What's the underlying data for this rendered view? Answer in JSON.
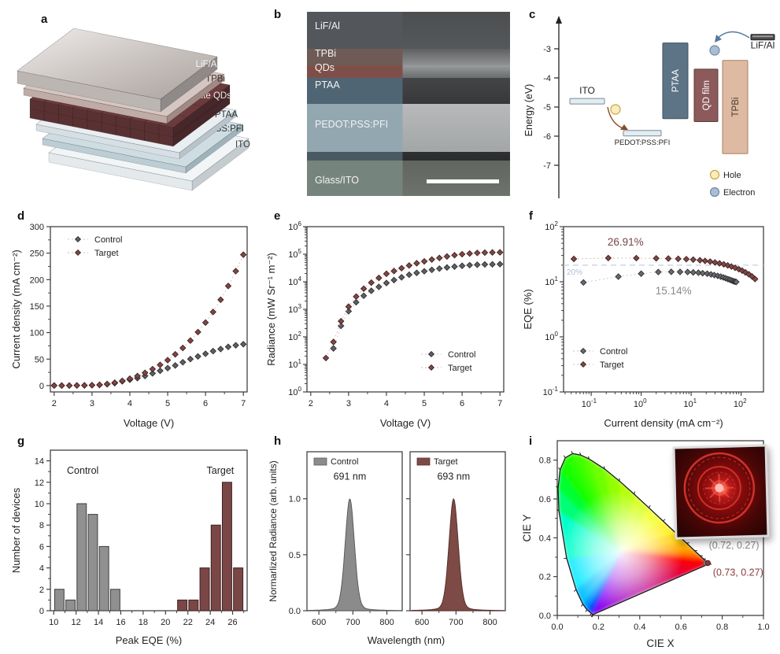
{
  "panels": {
    "a": {
      "label": "a",
      "layers": [
        {
          "name": "LiF/Al",
          "t": 16,
          "gap": 6,
          "top": "#d8d4d2",
          "side": "#8f8a88",
          "front": "#bcb6b3",
          "text": "#f7f7f7"
        },
        {
          "name": "TPBi",
          "t": 9,
          "gap": 5,
          "top": "#d6c6c2",
          "side": "#a08a85",
          "front": "#c0aca7",
          "text": "#3d3430"
        },
        {
          "name": "Perovskite QDs",
          "t": 24,
          "gap": 8,
          "top": "#6b3a3c",
          "side": "#46272a",
          "front": "#5a3133",
          "text": "#f3e8e6",
          "grid": true
        },
        {
          "name": "PTAA",
          "t": 8,
          "gap": 10,
          "top": "#e8eef1",
          "side": "#b9c4ca",
          "front": "#d6dfe3",
          "text": "#2c3438"
        },
        {
          "name": "PEDOT:PSS:PFI",
          "t": 8,
          "gap": 10,
          "top": "#cfdde3",
          "side": "#9fb3bc",
          "front": "#bccdd4",
          "text": "#253036"
        },
        {
          "name": "ITO",
          "t": 12,
          "gap": 0,
          "top": "#f1f5f6",
          "side": "#c4ccd0",
          "front": "#e4eaec",
          "text": "#333a3d"
        }
      ]
    },
    "b": {
      "label": "b",
      "layers": [
        {
          "name": "LiF/Al",
          "h": 20,
          "left": "#53565a",
          "right_top": "#4c4e50",
          "right_bot": "#55585a",
          "label_dy": 0.38
        },
        {
          "name": "TPBi",
          "h": 9,
          "left": "#6e5b55",
          "right_top": "#5e6062",
          "right_bot": "#8f9294",
          "label_dy": 0.3
        },
        {
          "name": "QDs",
          "h": 7,
          "left": "#7e4f49",
          "right_top": "#999c9d",
          "right_bot": "#6a6c6e",
          "label_dy": 0.18
        },
        {
          "name": "PTAA",
          "h": 14,
          "left": "#4f6573",
          "right_top": "#434547",
          "right_bot": "#36383a",
          "label_dy": 0.28
        },
        {
          "name": "PEDOT:PSS:PFI",
          "h": 26,
          "left": "#93a7b0",
          "right_top": "#b7b9ba",
          "right_bot": "#a3a6a7",
          "label_dy": 0.42
        },
        {
          "name": "",
          "h": 5,
          "left": "#4a5a62",
          "right_top": "#2e3032",
          "right_bot": "#2a2c2e",
          "label_dy": 0
        },
        {
          "name": "Glass/ITO",
          "h": 19,
          "left": "#76847e",
          "right_top": "#60665f",
          "right_bot": "#6d736c",
          "label_dy": 0.55
        }
      ],
      "has_scale_bar": true
    },
    "c": {
      "label": "c",
      "ylabel": "Energy (eV)",
      "yticks": [
        -3,
        -4,
        -5,
        -6,
        -7
      ],
      "electrodes": [
        {
          "name": "ITO",
          "level": -4.8,
          "x": 64,
          "w": 44,
          "label_pos": "above"
        },
        {
          "name": "PEDOT:PSS:PFI",
          "level": -5.9,
          "x": 132,
          "w": 48,
          "label_pos": "below"
        },
        {
          "name": "LiF/Al",
          "level": -2.6,
          "x": 294,
          "w": 30,
          "label_pos": "below",
          "metallic": true
        }
      ],
      "bars": [
        {
          "name": "PTAA",
          "top": -2.8,
          "bottom": -5.4,
          "x": 182,
          "w": 32,
          "color": "#5d7486",
          "stroke": "#3f5260",
          "text": "#ffffff"
        },
        {
          "name": "QD film",
          "top": -3.7,
          "bottom": -5.5,
          "x": 222,
          "w": 30,
          "color": "#8c5a5a",
          "stroke": "#5e3a3a",
          "text": "#ffffff"
        },
        {
          "name": "TPBi",
          "top": -3.4,
          "bottom": -6.6,
          "x": 258,
          "w": 32,
          "color": "#ddbaa1",
          "stroke": "#a98064",
          "text": "#4a3a30"
        }
      ],
      "legend": [
        {
          "label": "Hole",
          "fill": "#f8edc0",
          "stroke": "#caa53a"
        },
        {
          "label": "Electron",
          "fill": "#a9bdd3",
          "stroke": "#6e88a6"
        }
      ]
    },
    "d": {
      "label": "d"
    },
    "e": {
      "label": "e"
    },
    "f": {
      "label": "f"
    },
    "g": {
      "label": "g"
    },
    "h": {
      "label": "h"
    },
    "i": {
      "label": "i"
    }
  },
  "chart_data": [
    {
      "id": "d",
      "type": "scatter",
      "xlabel": "Voltage (V)",
      "ylabel": "Current density (mA cm⁻²)",
      "xlim": [
        1.9,
        7.1
      ],
      "ylim": [
        -12,
        300
      ],
      "xticks": [
        2,
        3,
        4,
        5,
        6,
        7
      ],
      "yticks": [
        0,
        50,
        100,
        150,
        200,
        250,
        300
      ],
      "legend_position": "top-left",
      "series": [
        {
          "name": "Control",
          "fill": "#5e5e63",
          "edge": "#2f2f33",
          "line": "#c4c4c4",
          "x": [
            2.0,
            2.2,
            2.4,
            2.6,
            2.8,
            3.0,
            3.2,
            3.4,
            3.6,
            3.8,
            4.0,
            4.2,
            4.4,
            4.6,
            4.8,
            5.0,
            5.2,
            5.4,
            5.6,
            5.8,
            6.0,
            6.2,
            6.4,
            6.6,
            6.8,
            7.0
          ],
          "y": [
            0,
            0,
            0,
            0.2,
            0.3,
            0.6,
            1.2,
            2.5,
            4.5,
            8,
            11,
            14,
            18,
            23,
            28,
            33,
            38,
            44,
            50,
            55,
            60,
            65,
            69,
            73,
            76,
            78
          ]
        },
        {
          "name": "Target",
          "fill": "#7d4848",
          "edge": "#43201f",
          "line": "#d8b0b0",
          "x": [
            2.0,
            2.2,
            2.4,
            2.6,
            2.8,
            3.0,
            3.2,
            3.4,
            3.6,
            3.8,
            4.0,
            4.2,
            4.4,
            4.6,
            4.8,
            5.0,
            5.2,
            5.4,
            5.6,
            5.8,
            6.0,
            6.2,
            6.4,
            6.6,
            6.8,
            7.0
          ],
          "y": [
            0,
            0,
            0,
            0.2,
            0.4,
            0.8,
            1.6,
            3,
            5.5,
            9,
            13,
            18,
            24,
            31,
            39,
            48,
            59,
            71,
            85,
            101,
            119,
            139,
            162,
            188,
            216,
            247
          ]
        }
      ]
    },
    {
      "id": "e",
      "type": "scatter-logy",
      "xlabel": "Voltage (V)",
      "ylabel": "Radiance (mW Sr⁻¹ m⁻²)",
      "xlim": [
        1.9,
        7.1
      ],
      "ylog_exp": [
        0,
        6
      ],
      "xticks": [
        2,
        3,
        4,
        5,
        6,
        7
      ],
      "legend_position": "bottom-right",
      "series": [
        {
          "name": "Control",
          "fill": "#5e5e63",
          "edge": "#2f2f33",
          "line": "#c4c4c4",
          "x": [
            2.6,
            2.8,
            3.0,
            3.2,
            3.4,
            3.6,
            3.8,
            4.0,
            4.2,
            4.4,
            4.6,
            4.8,
            5.0,
            5.2,
            5.4,
            5.6,
            5.8,
            6.0,
            6.2,
            6.4,
            6.6,
            6.8,
            7.0
          ],
          "y": [
            38,
            250,
            850,
            1800,
            3100,
            4700,
            6500,
            9000,
            11500,
            14500,
            18000,
            21000,
            24000,
            27000,
            30000,
            33000,
            35500,
            38000,
            40000,
            41500,
            42500,
            43000,
            43500
          ]
        },
        {
          "name": "Target",
          "fill": "#7d4848",
          "edge": "#43201f",
          "line": "#d8b0b0",
          "x": [
            2.4,
            2.6,
            2.8,
            3.0,
            3.2,
            3.4,
            3.6,
            3.8,
            4.0,
            4.2,
            4.4,
            4.6,
            4.8,
            5.0,
            5.2,
            5.4,
            5.6,
            5.8,
            6.0,
            6.2,
            6.4,
            6.6,
            6.8,
            7.0
          ],
          "y": [
            17,
            65,
            370,
            1250,
            2900,
            5600,
            9300,
            13800,
            19500,
            24500,
            31000,
            39000,
            47000,
            55000,
            64000,
            73000,
            83000,
            92000,
            100000,
            106000,
            111000,
            114000,
            116000,
            117000
          ]
        }
      ]
    },
    {
      "id": "f",
      "type": "scatter-loglog",
      "xlabel": "Current density (mA cm⁻²)",
      "ylabel": "EQE (%)",
      "xlog_lim": [
        0.028,
        280
      ],
      "ylog_exp": [
        -1,
        2
      ],
      "legend_position": "bottom-left",
      "refline": {
        "value": 20,
        "label": "20%",
        "color": "#c9d4e6",
        "label_color": "#aebfd8"
      },
      "annotations": [
        {
          "text": "26.91%",
          "color": "#7a4444",
          "px": 0.31,
          "py": 0.115
        },
        {
          "text": "15.14%",
          "color": "#8a8a8a",
          "px": 0.55,
          "py": 0.41
        }
      ],
      "series": [
        {
          "name": "Control",
          "fill": "#6a6a6e",
          "edge": "#2f2f33",
          "line": "#c4c4c4",
          "x": [
            0.07,
            0.35,
            1,
            2.2,
            4,
            6,
            8.5,
            11,
            14,
            17,
            21,
            25,
            29,
            34,
            39,
            44,
            49,
            54,
            59,
            64,
            69,
            73,
            77,
            80
          ],
          "y": [
            9.7,
            12.4,
            14.0,
            15.0,
            15.14,
            15.1,
            15.0,
            14.8,
            14.6,
            14.3,
            14.0,
            13.6,
            13.2,
            12.8,
            12.4,
            12.0,
            11.6,
            11.2,
            10.9,
            10.6,
            10.3,
            10.1,
            10.0,
            9.9
          ]
        },
        {
          "name": "Target",
          "fill": "#7d4848",
          "edge": "#43201f",
          "line": "#d8b0b0",
          "x": [
            0.045,
            0.22,
            0.8,
            2,
            3.5,
            5.5,
            8,
            11,
            15,
            19,
            24,
            30,
            37,
            45,
            54,
            64,
            76,
            90,
            105,
            122,
            142,
            165,
            190
          ],
          "y": [
            26.0,
            26.91,
            26.8,
            26.6,
            26.4,
            26.1,
            25.7,
            25.2,
            24.6,
            23.9,
            23.2,
            22.4,
            21.6,
            20.7,
            19.8,
            18.9,
            17.9,
            16.9,
            15.9,
            14.8,
            13.7,
            12.5,
            11.2
          ]
        }
      ]
    },
    {
      "id": "g",
      "type": "bar",
      "xlabel": "Peak EQE (%)",
      "ylabel": "Number of devices",
      "xlim": [
        9.7,
        27.3
      ],
      "ylim": [
        0,
        15
      ],
      "xticks": [
        10,
        12,
        14,
        16,
        18,
        20,
        22,
        24,
        26
      ],
      "yticks": [
        0,
        2,
        4,
        6,
        8,
        10,
        12,
        14
      ],
      "bar_width": 0.84,
      "groups": [
        {
          "name": "Control",
          "fill": "#909090",
          "edge": "#3d3d3d",
          "label_x": 12.6,
          "label_y": 12.8,
          "centers": [
            10.5,
            11.5,
            12.5,
            13.5,
            14.5,
            15.5
          ],
          "counts": [
            2,
            1,
            10,
            9,
            6,
            2
          ]
        },
        {
          "name": "Target",
          "fill": "#7b4646",
          "edge": "#3d2222",
          "label_x": 24.9,
          "label_y": 12.8,
          "centers": [
            21.5,
            22.5,
            23.5,
            24.5,
            25.5,
            26.5
          ],
          "counts": [
            1,
            1,
            4,
            8,
            12,
            4
          ]
        }
      ]
    },
    {
      "id": "h",
      "type": "area",
      "xlabel": "Wavelength (nm)",
      "ylabel": "Normarlized Radiance (arb. units)",
      "xlim": [
        565,
        845
      ],
      "xticks": [
        600,
        700,
        800
      ],
      "ylim": [
        0,
        1.42
      ],
      "yticks": [
        0.0,
        0.5,
        1.0
      ],
      "ytick_labels": [
        "0.0",
        "0.5",
        "1.0"
      ],
      "panels": [
        {
          "name": "Control",
          "peak_nm": 691,
          "peak_label": "691 nm",
          "fwhm_nm": 32,
          "fill": "#8b8b8b",
          "edge": "#5a5a5a"
        },
        {
          "name": "Target",
          "peak_nm": 693,
          "peak_label": "693 nm",
          "fwhm_nm": 32,
          "fill": "#7e4a45",
          "edge": "#55302c"
        }
      ]
    },
    {
      "id": "i",
      "type": "cie",
      "xlabel": "CIE X",
      "ylabel": "CIE Y",
      "xlim": [
        0,
        1
      ],
      "ylim": [
        0,
        0.9
      ],
      "xticks": [
        0,
        0.2,
        0.4,
        0.6,
        0.8,
        1.0
      ],
      "yticks": [
        0,
        0.2,
        0.4,
        0.6,
        0.8
      ],
      "white_point": [
        0.3127,
        0.329
      ],
      "points": [
        {
          "name": "Control",
          "x": 0.72,
          "y": 0.27,
          "label": "(0.72, 0.27)",
          "color": "#8a8a8a",
          "edge": "#555555",
          "label_x": 0.735,
          "label_y": 0.345
        },
        {
          "name": "Target",
          "x": 0.73,
          "y": 0.27,
          "label": "(0.73, 0.27)",
          "color": "#8c3a3a",
          "edge": "#4c1f1f",
          "label_x": 0.755,
          "label_y": 0.205
        }
      ],
      "locus": [
        [
          380,
          0.1741,
          0.005
        ],
        [
          400,
          0.1733,
          0.0048
        ],
        [
          420,
          0.1714,
          0.0051
        ],
        [
          440,
          0.1644,
          0.0109
        ],
        [
          460,
          0.144,
          0.0297
        ],
        [
          470,
          0.1241,
          0.0578
        ],
        [
          480,
          0.0913,
          0.1327
        ],
        [
          490,
          0.0454,
          0.295
        ],
        [
          500,
          0.0082,
          0.5384
        ],
        [
          505,
          0.0039,
          0.6548
        ],
        [
          510,
          0.0139,
          0.7502
        ],
        [
          515,
          0.0389,
          0.812
        ],
        [
          520,
          0.0743,
          0.8338
        ],
        [
          525,
          0.1142,
          0.8262
        ],
        [
          530,
          0.1547,
          0.8059
        ],
        [
          540,
          0.2296,
          0.7543
        ],
        [
          550,
          0.3016,
          0.6923
        ],
        [
          560,
          0.3731,
          0.6245
        ],
        [
          570,
          0.4441,
          0.5547
        ],
        [
          580,
          0.5125,
          0.4866
        ],
        [
          590,
          0.5752,
          0.4242
        ],
        [
          600,
          0.627,
          0.3725
        ],
        [
          610,
          0.6658,
          0.334
        ],
        [
          620,
          0.6915,
          0.3083
        ],
        [
          630,
          0.7079,
          0.292
        ],
        [
          640,
          0.719,
          0.2809
        ],
        [
          650,
          0.726,
          0.274
        ],
        [
          680,
          0.7334,
          0.2666
        ],
        [
          700,
          0.7347,
          0.2653
        ]
      ]
    }
  ]
}
